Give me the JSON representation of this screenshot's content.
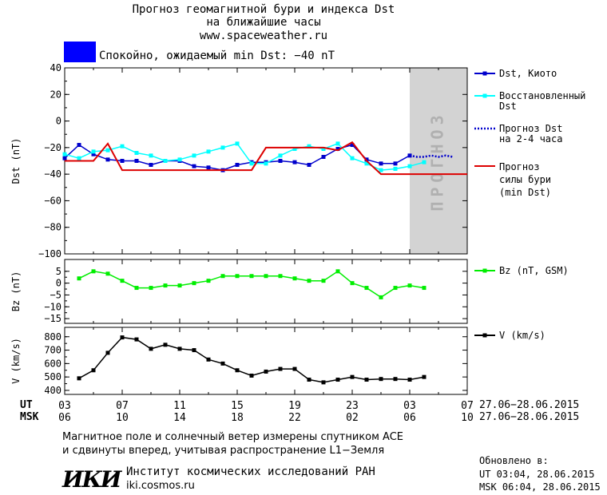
{
  "header": {
    "title_line1": "Прогноз геомагнитной бури и индекса Dst",
    "title_line2": "на ближайшие часы",
    "site": "www.spaceweather.ru",
    "status_text": "Спокойно, ожидаемый min Dst: −40 nT",
    "status_color": "#0000ff"
  },
  "colors": {
    "dst_kyoto": "#0000cc",
    "dst_restored": "#00ffff",
    "dst_forecast": "#0000cc",
    "storm_forecast": "#dd0000",
    "bz": "#00ee00",
    "v": "#000000",
    "forecast_zone": "#d3d3d3"
  },
  "legend": {
    "dst_kyoto": "Dst, Киото",
    "restored_1": "Восстановленный",
    "restored_2": "Dst",
    "forecast_1": "Прогноз Dst",
    "forecast_2": "на 2-4 часа",
    "storm_1": "Прогноз",
    "storm_2": "силы бури",
    "storm_3": "(min Dst)",
    "bz": "Bz (nT, GSM)",
    "v": "V (km/s)"
  },
  "forecast_zone_label": "ПРОГНОЗ",
  "time_axis": {
    "ut_label": "UT",
    "msk_label": "MSK",
    "ut_ticks": [
      "03",
      "07",
      "11",
      "15",
      "19",
      "23",
      "03",
      "07"
    ],
    "msk_ticks": [
      "06",
      "10",
      "14",
      "18",
      "22",
      "02",
      "06",
      "10"
    ],
    "ut_range": "27.06−28.06.2015",
    "msk_range": "27.06−28.06.2015"
  },
  "footer": {
    "note_line1": "Магнитное поле и солнечный ветер измерены спутником ACE",
    "note_line2": "и сдвинуты вперед, учитывая распространение L1−Земля",
    "logo": "ИКИ",
    "institute": "Институт космических исследований РАН",
    "institute_url": "iki.cosmos.ru",
    "updated_label": "Обновлено в:",
    "updated_ut": "UT  03:04, 28.06.2015",
    "updated_msk": "MSK 06:04, 28.06.2015"
  },
  "chart_data": [
    {
      "type": "line",
      "ylabel": "Dst (nT)",
      "ylim": [
        -100,
        40
      ],
      "yticks": [
        40,
        20,
        0,
        -20,
        -40,
        -60,
        -80,
        -100
      ],
      "xlim": [
        0,
        28
      ],
      "forecast_zone_x": [
        24,
        28
      ],
      "series": [
        {
          "name": "Dst, Киото",
          "key": "dst_kyoto",
          "x": [
            0,
            1,
            2,
            3,
            4,
            5,
            6,
            7,
            8,
            9,
            10,
            11,
            12,
            13,
            14,
            15,
            16,
            17,
            18,
            19,
            20,
            21,
            22,
            23,
            24
          ],
          "y": [
            -28,
            -18,
            -25,
            -29,
            -30,
            -30,
            -33,
            -30,
            -30,
            -34,
            -35,
            -37,
            -33,
            -31,
            -31,
            -30,
            -31,
            -33,
            -27,
            -21,
            -18,
            -29,
            -32,
            -32,
            -26
          ]
        },
        {
          "name": "Восстановленный Dst",
          "key": "dst_restored",
          "x": [
            0,
            1,
            2,
            3,
            4,
            5,
            6,
            7,
            8,
            9,
            10,
            11,
            12,
            13,
            14,
            15,
            16,
            17,
            18,
            19,
            20,
            21,
            22,
            23,
            24,
            25
          ],
          "y": [
            -25,
            -28,
            -23,
            -22,
            -19,
            -24,
            -26,
            -30,
            -29,
            -26,
            -23,
            -20,
            -17,
            -32,
            -32,
            -26,
            -21,
            -19,
            -21,
            -17,
            -28,
            -32,
            -37,
            -36,
            -34,
            -31
          ]
        },
        {
          "name": "Прогноз Dst на 2-4 часа",
          "key": "dst_forecast",
          "dotted": true,
          "x": [
            24,
            24.5,
            25,
            25.5,
            26,
            26.5,
            27
          ],
          "y": [
            -26,
            -27,
            -27,
            -26,
            -27,
            -26,
            -27
          ]
        },
        {
          "name": "Прогноз силы бури (min Dst)",
          "key": "storm_forecast",
          "step": true,
          "x": [
            0,
            2,
            3,
            4,
            13,
            14,
            18,
            19,
            20,
            21,
            22,
            24,
            28
          ],
          "y": [
            -30,
            -30,
            -17,
            -37,
            -37,
            -20,
            -20,
            -22,
            -16,
            -30,
            -40,
            -40,
            -40
          ]
        }
      ]
    },
    {
      "type": "line",
      "ylabel": "Bz (nT)",
      "ylim": [
        -17,
        10
      ],
      "yticks": [
        5,
        0,
        -5,
        -10,
        -15
      ],
      "xlim": [
        0,
        28
      ],
      "series": [
        {
          "name": "Bz (nT, GSM)",
          "key": "bz",
          "x": [
            1,
            2,
            3,
            4,
            5,
            6,
            7,
            8,
            9,
            10,
            11,
            12,
            13,
            14,
            15,
            16,
            17,
            18,
            19,
            20,
            21,
            22,
            23,
            24,
            25
          ],
          "y": [
            2,
            5,
            4,
            1,
            -2,
            -2,
            -1,
            -1,
            0,
            1,
            3,
            3,
            3,
            3,
            3,
            2,
            1,
            1,
            5,
            0,
            -2,
            -6,
            -2,
            -1,
            -2
          ]
        }
      ]
    },
    {
      "type": "line",
      "ylabel": "V (km/s)",
      "ylim": [
        370,
        870
      ],
      "yticks": [
        800,
        700,
        600,
        500,
        400
      ],
      "xlim": [
        0,
        28
      ],
      "series": [
        {
          "name": "V (km/s)",
          "key": "v",
          "x": [
            1,
            2,
            3,
            4,
            5,
            6,
            7,
            8,
            9,
            10,
            11,
            12,
            13,
            14,
            15,
            16,
            17,
            18,
            19,
            20,
            21,
            22,
            23,
            24,
            25
          ],
          "y": [
            490,
            550,
            680,
            795,
            780,
            710,
            740,
            710,
            700,
            630,
            600,
            550,
            510,
            540,
            560,
            560,
            480,
            460,
            480,
            500,
            480,
            485,
            485,
            480,
            500
          ]
        }
      ]
    }
  ]
}
